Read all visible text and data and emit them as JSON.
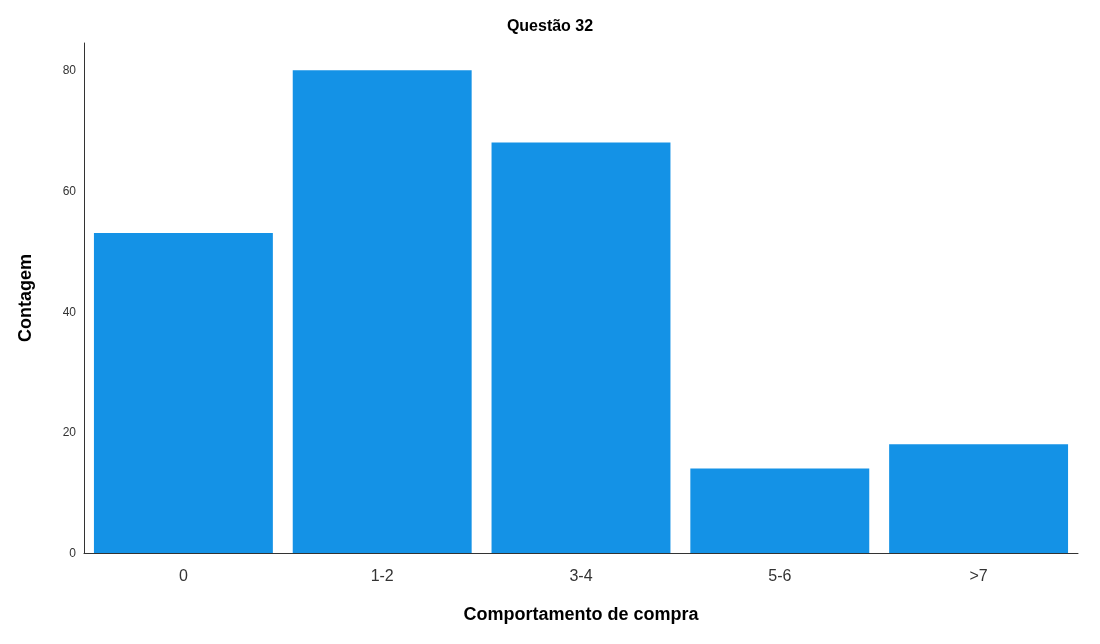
{
  "chart_data": {
    "type": "bar",
    "title": "Questão 32",
    "xlabel": "Comportamento de compra",
    "ylabel": "Contagem",
    "categories": [
      "0",
      "1-2",
      "3-4",
      "5-6",
      ">7"
    ],
    "values": [
      53,
      80,
      68,
      14,
      18
    ],
    "color": "#1492e6",
    "ylim": [
      0,
      84.5
    ],
    "yticks": [
      0,
      20,
      40,
      60,
      80
    ],
    "grid": false
  }
}
